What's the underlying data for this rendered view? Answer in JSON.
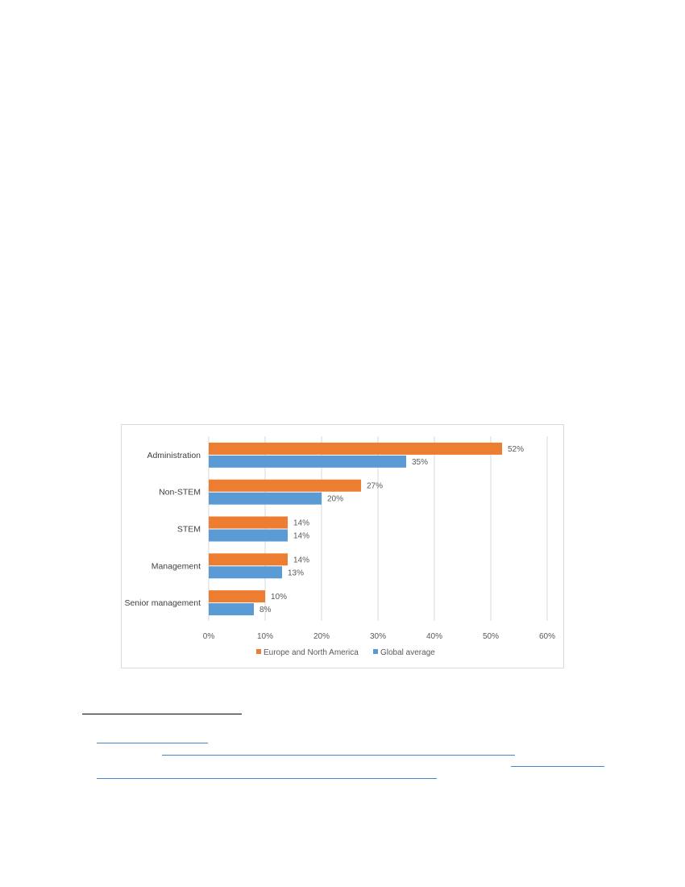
{
  "chart_data": {
    "type": "bar",
    "orientation": "horizontal",
    "categories": [
      "Administration",
      "Non-STEM",
      "STEM",
      "Management",
      "Senior management"
    ],
    "series": [
      {
        "name": "Europe and North America",
        "color": "#ed7d31",
        "values": [
          52,
          27,
          14,
          14,
          10
        ],
        "labels": [
          "52%",
          "27%",
          "14%",
          "14%",
          "10%"
        ]
      },
      {
        "name": "Global average",
        "color": "#5b9bd5",
        "values": [
          35,
          20,
          14,
          13,
          8
        ],
        "labels": [
          "35%",
          "20%",
          "14%",
          "13%",
          "8%"
        ]
      }
    ],
    "xlim": [
      0,
      60
    ],
    "x_ticks": [
      0,
      10,
      20,
      30,
      40,
      50,
      60
    ],
    "x_tick_labels": [
      "0%",
      "10%",
      "20%",
      "30%",
      "40%",
      "50%",
      "60%"
    ],
    "grid": true,
    "legend_position": "bottom"
  }
}
